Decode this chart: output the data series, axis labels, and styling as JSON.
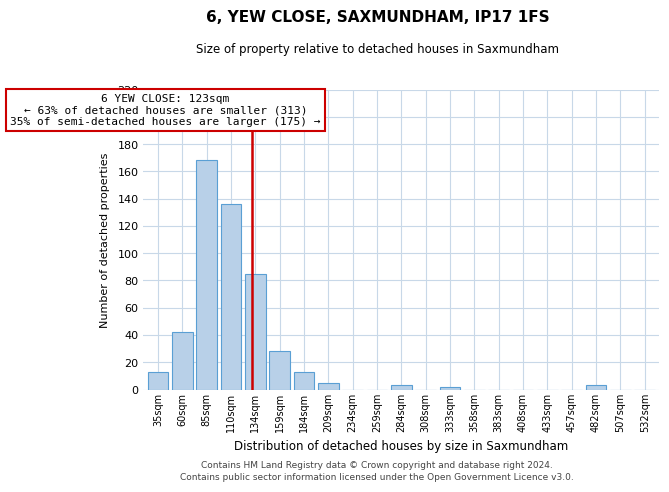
{
  "title": "6, YEW CLOSE, SAXMUNDHAM, IP17 1FS",
  "subtitle": "Size of property relative to detached houses in Saxmundham",
  "xlabel": "Distribution of detached houses by size in Saxmundham",
  "ylabel": "Number of detached properties",
  "bar_labels": [
    "35sqm",
    "60sqm",
    "85sqm",
    "110sqm",
    "134sqm",
    "159sqm",
    "184sqm",
    "209sqm",
    "234sqm",
    "259sqm",
    "284sqm",
    "308sqm",
    "333sqm",
    "358sqm",
    "383sqm",
    "408sqm",
    "433sqm",
    "457sqm",
    "482sqm",
    "507sqm",
    "532sqm"
  ],
  "bar_values": [
    13,
    42,
    168,
    136,
    85,
    28,
    13,
    5,
    0,
    0,
    3,
    0,
    2,
    0,
    0,
    0,
    0,
    0,
    3,
    0,
    0
  ],
  "bar_color": "#b8d0e8",
  "bar_edge_color": "#5a9fd4",
  "vline_color": "#cc0000",
  "ylim": [
    0,
    220
  ],
  "yticks": [
    0,
    20,
    40,
    60,
    80,
    100,
    120,
    140,
    160,
    180,
    200,
    220
  ],
  "annotation_title": "6 YEW CLOSE: 123sqm",
  "annotation_line1": "← 63% of detached houses are smaller (313)",
  "annotation_line2": "35% of semi-detached houses are larger (175) →",
  "annotation_box_color": "#ffffff",
  "annotation_box_edge": "#cc0000",
  "footer_line1": "Contains HM Land Registry data © Crown copyright and database right 2024.",
  "footer_line2": "Contains public sector information licensed under the Open Government Licence v3.0.",
  "bg_color": "#ffffff",
  "grid_color": "#c8d8e8"
}
